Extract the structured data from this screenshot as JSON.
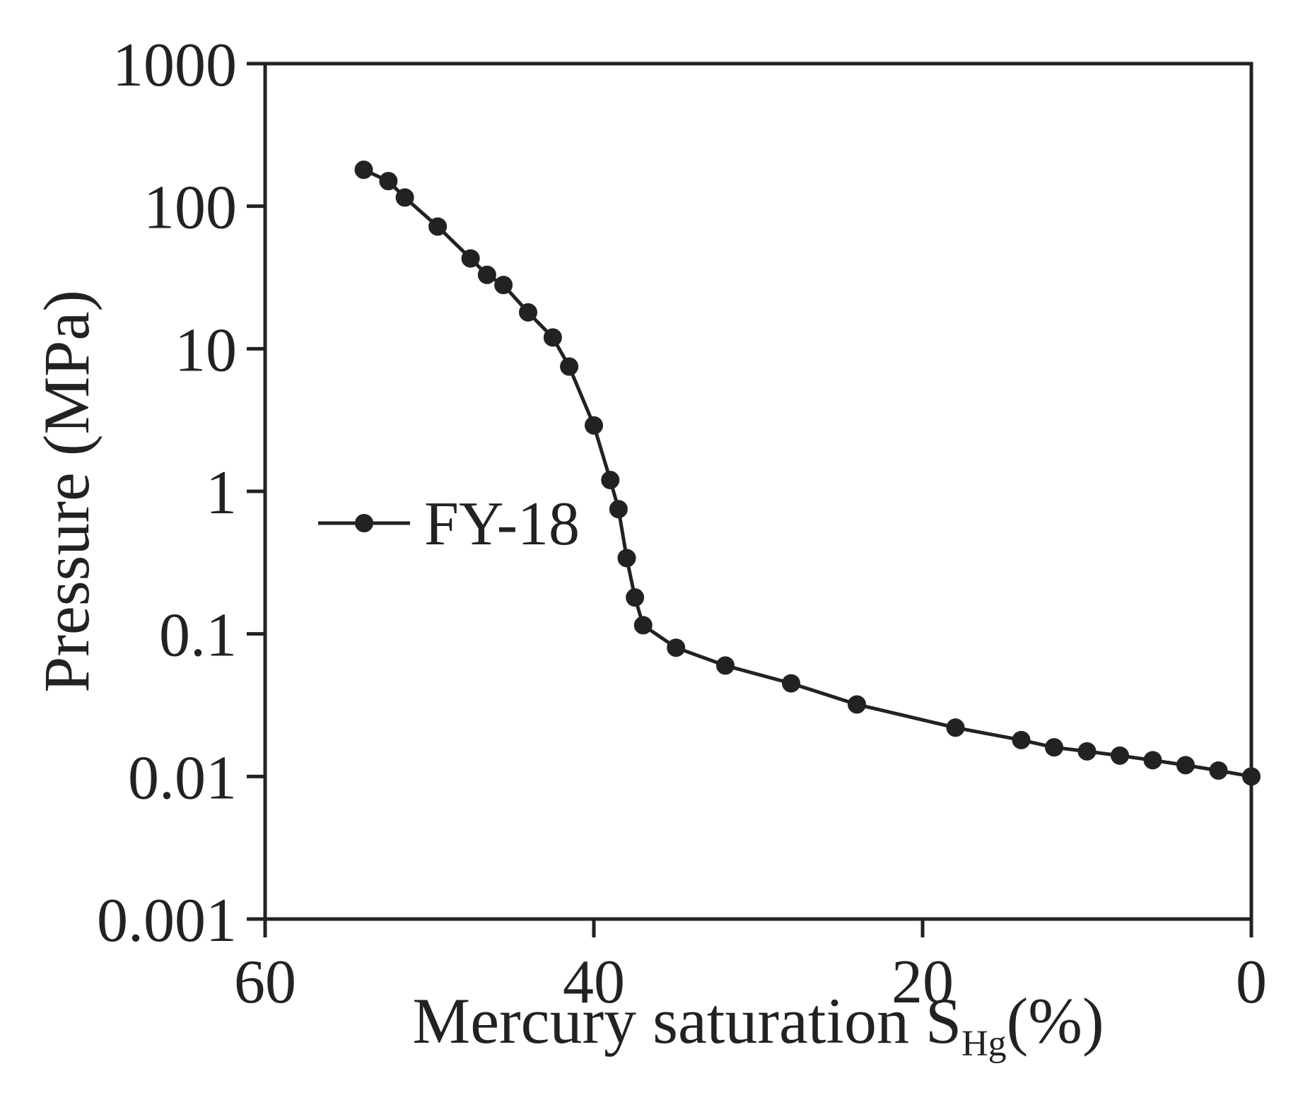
{
  "chart_data": {
    "type": "line",
    "title": "",
    "xlabel": {
      "main": "Mercury saturation S",
      "subscript": "Hg",
      "unit": "(%)"
    },
    "ylabel": "Pressure (MPa)",
    "x_axis": {
      "reversed": true,
      "range": [
        60,
        0
      ],
      "ticks": [
        "60",
        "40",
        "20",
        "0"
      ]
    },
    "y_axis": {
      "scale": "log",
      "range": [
        0.001,
        1000
      ],
      "ticks": [
        "1000",
        "100",
        "10",
        "1",
        "0.1",
        "0.01",
        "0.001"
      ]
    },
    "grid": false,
    "legend_position": "lower-left",
    "series": [
      {
        "name": "FY-18",
        "color": "#222222",
        "marker": "circle",
        "points": [
          [
            54.0,
            180
          ],
          [
            52.5,
            150
          ],
          [
            51.5,
            115
          ],
          [
            49.5,
            72
          ],
          [
            47.5,
            43
          ],
          [
            46.5,
            33
          ],
          [
            45.5,
            28
          ],
          [
            44.0,
            18
          ],
          [
            42.5,
            12
          ],
          [
            41.5,
            7.5
          ],
          [
            40.0,
            2.9
          ],
          [
            39.0,
            1.2
          ],
          [
            38.5,
            0.75
          ],
          [
            38.0,
            0.34
          ],
          [
            37.5,
            0.18
          ],
          [
            37.0,
            0.115
          ],
          [
            35.0,
            0.08
          ],
          [
            32.0,
            0.06
          ],
          [
            28.0,
            0.045
          ],
          [
            24.0,
            0.032
          ],
          [
            18.0,
            0.022
          ],
          [
            14.0,
            0.018
          ],
          [
            12.0,
            0.016
          ],
          [
            10.0,
            0.015
          ],
          [
            8.0,
            0.014
          ],
          [
            6.0,
            0.013
          ],
          [
            4.0,
            0.012
          ],
          [
            2.0,
            0.011
          ],
          [
            0.0,
            0.01
          ]
        ]
      }
    ]
  }
}
